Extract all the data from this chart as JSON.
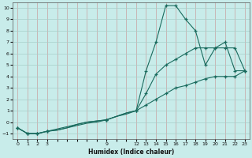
{
  "xlabel": "Humidex (Indice chaleur)",
  "bg_color": "#c8ecea",
  "line_color": "#1a6b5e",
  "grid_color_v": "#c8a0a0",
  "grid_color_h": "#a8ceca",
  "xlim": [
    -0.5,
    23.5
  ],
  "ylim": [
    -1.5,
    10.5
  ],
  "xtick_positions": [
    0,
    1,
    2,
    3,
    4,
    5,
    6,
    7,
    8,
    9,
    10,
    11,
    12,
    13,
    14,
    15,
    16,
    17,
    18,
    19,
    20,
    21,
    22,
    23
  ],
  "xtick_labels": [
    "0",
    "1",
    "2",
    "3",
    "",
    "",
    "",
    "",
    "",
    "9",
    "",
    "",
    "12",
    "13",
    "14",
    "15",
    "16",
    "17",
    "18",
    "19",
    "20",
    "21",
    "22",
    "23"
  ],
  "yticks": [
    -1,
    0,
    1,
    2,
    3,
    4,
    5,
    6,
    7,
    8,
    9,
    10
  ],
  "line1_x": [
    0,
    1,
    2,
    3,
    4,
    5,
    6,
    7,
    8,
    9,
    10,
    11,
    12,
    13,
    14,
    15,
    16,
    17,
    18,
    19,
    20,
    21,
    22,
    23
  ],
  "line1_y": [
    -0.5,
    -1.0,
    -1.0,
    -0.8,
    -0.7,
    -0.5,
    -0.3,
    -0.1,
    0.0,
    0.2,
    0.5,
    0.8,
    1.0,
    4.5,
    7.0,
    10.2,
    10.2,
    9.0,
    8.0,
    5.0,
    6.5,
    7.0,
    4.5,
    4.5
  ],
  "line2_x": [
    0,
    1,
    2,
    3,
    4,
    5,
    6,
    7,
    8,
    9,
    10,
    11,
    12,
    13,
    14,
    15,
    16,
    17,
    18,
    19,
    20,
    21,
    22,
    23
  ],
  "line2_y": [
    -0.5,
    -1.0,
    -1.0,
    -0.8,
    -0.7,
    -0.5,
    -0.2,
    0.0,
    0.1,
    0.2,
    0.5,
    0.8,
    1.0,
    2.5,
    4.2,
    5.0,
    5.5,
    6.0,
    6.5,
    6.5,
    6.5,
    6.5,
    6.5,
    4.5
  ],
  "line3_x": [
    0,
    1,
    2,
    3,
    4,
    5,
    6,
    7,
    8,
    9,
    10,
    11,
    12,
    13,
    14,
    15,
    16,
    17,
    18,
    19,
    20,
    21,
    22,
    23
  ],
  "line3_y": [
    -0.5,
    -1.0,
    -1.0,
    -0.8,
    -0.6,
    -0.4,
    -0.2,
    0.0,
    0.1,
    0.2,
    0.5,
    0.7,
    1.0,
    1.5,
    2.0,
    2.5,
    3.0,
    3.2,
    3.5,
    3.8,
    4.0,
    4.0,
    4.0,
    4.5
  ],
  "marker_x1": [
    0,
    1,
    2,
    3,
    9,
    12,
    13,
    14,
    15,
    16,
    17,
    18,
    19,
    20,
    21,
    22,
    23
  ],
  "marker_x2": [
    0,
    1,
    2,
    3,
    9,
    12,
    13,
    14,
    15,
    16,
    17,
    18,
    19,
    20,
    21,
    22,
    23
  ],
  "marker_x3": [
    0,
    1,
    2,
    3,
    9,
    12,
    13,
    14,
    15,
    16,
    17,
    18,
    19,
    20,
    21,
    22,
    23
  ]
}
